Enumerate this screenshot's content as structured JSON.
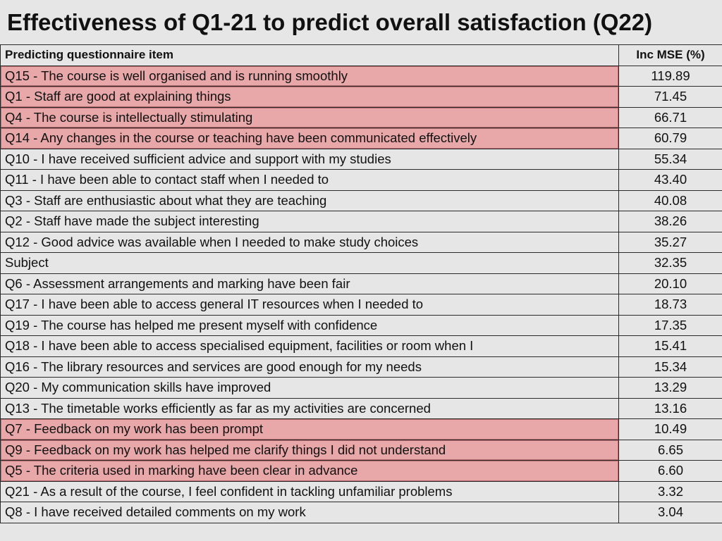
{
  "title": "Effectiveness of Q1-21 to predict overall satisfaction (Q22)",
  "colors": {
    "background": "#e6e6e6",
    "highlight": "#e8a7a8",
    "border": "#2a2a2a"
  },
  "table": {
    "headers": {
      "item": "Predicting questionnaire item",
      "value": "Inc MSE (%)"
    },
    "rows": [
      {
        "item": "Q15 - The course is well organised and is running smoothly",
        "value": "119.89",
        "highlighted": true
      },
      {
        "item": "Q1 - Staff are good at explaining things",
        "value": "71.45",
        "highlighted": true
      },
      {
        "item": "Q4 - The course is intellectually stimulating",
        "value": "66.71",
        "highlighted": true
      },
      {
        "item": "Q14 - Any changes in the course or teaching have been communicated effectively",
        "value": "60.79",
        "highlighted": true
      },
      {
        "item": "Q10 - I have received sufficient advice and support with my studies",
        "value": "55.34",
        "highlighted": false
      },
      {
        "item": "Q11 - I have been able to contact staff when I needed to",
        "value": "43.40",
        "highlighted": false
      },
      {
        "item": "Q3 - Staff are enthusiastic about what they are teaching",
        "value": "40.08",
        "highlighted": false
      },
      {
        "item": "Q2 - Staff have made the subject interesting",
        "value": "38.26",
        "highlighted": false
      },
      {
        "item": "Q12 - Good advice was available when I needed to make study choices",
        "value": "35.27",
        "highlighted": false
      },
      {
        "item": "Subject",
        "value": "32.35",
        "highlighted": false
      },
      {
        "item": "Q6 - Assessment arrangements and marking have been fair",
        "value": "20.10",
        "highlighted": false
      },
      {
        "item": "Q17 - I have been able to access general IT resources when I needed to",
        "value": "18.73",
        "highlighted": false
      },
      {
        "item": "Q19 - The course has helped me present myself with confidence",
        "value": "17.35",
        "highlighted": false
      },
      {
        "item": "Q18 - I have been able to access specialised equipment, facilities or room when I",
        "value": "15.41",
        "highlighted": false
      },
      {
        "item": "Q16 - The library resources and services are good enough for my needs",
        "value": "15.34",
        "highlighted": false
      },
      {
        "item": "Q20 - My communication skills have improved",
        "value": "13.29",
        "highlighted": false
      },
      {
        "item": "Q13 - The timetable works efficiently as far as my activities are concerned",
        "value": "13.16",
        "highlighted": false
      },
      {
        "item": "Q7 - Feedback on my work has been prompt",
        "value": "10.49",
        "highlighted": true
      },
      {
        "item": "Q9 - Feedback on my work has helped me clarify things I did not understand",
        "value": "6.65",
        "highlighted": true
      },
      {
        "item": "Q5 - The criteria used in marking have been clear in advance",
        "value": "6.60",
        "highlighted": true
      },
      {
        "item": "Q21 - As a result of the course, I feel confident in tackling unfamiliar problems",
        "value": "3.32",
        "highlighted": false
      },
      {
        "item": "Q8 - I have received detailed comments on my work",
        "value": "3.04",
        "highlighted": false
      }
    ]
  }
}
